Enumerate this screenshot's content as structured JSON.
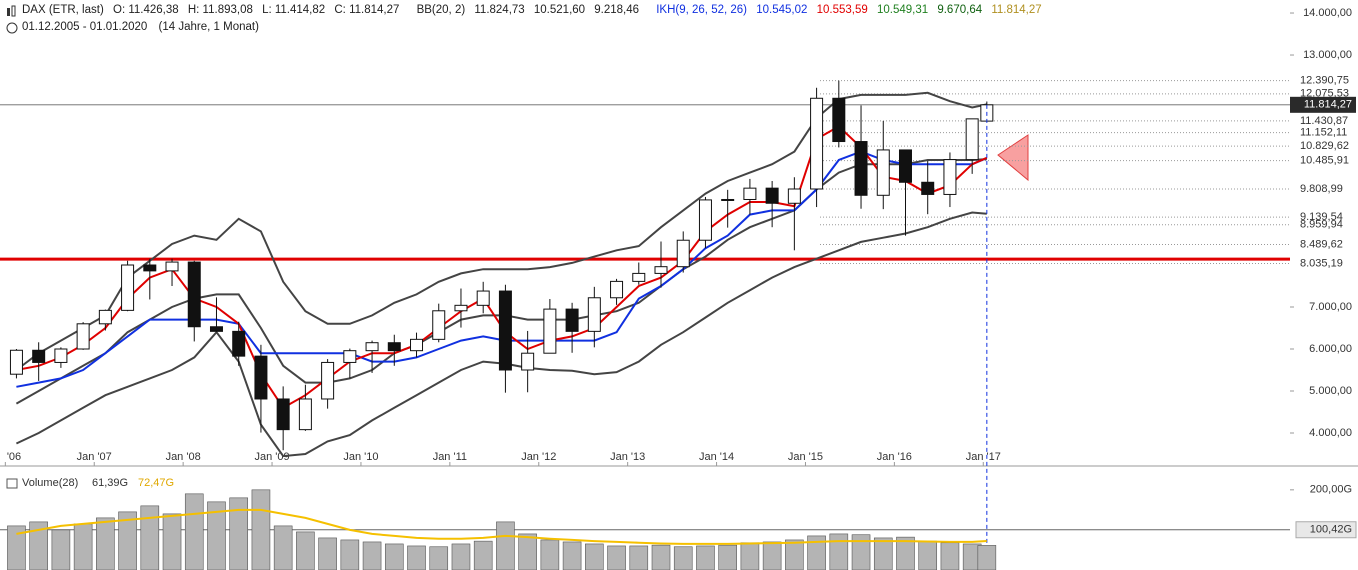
{
  "header": {
    "symbol": "DAX (ETR, last)",
    "open": "O: 11.426,38",
    "high": "H: 11.893,08",
    "low": "L: 11.414,82",
    "close": "C: 11.814,27",
    "bb": "BB(20, 2)",
    "bb_upper": "11.824,73",
    "bb_middle": "10.521,60",
    "bb_lower": "9.218,46",
    "ikh": "IKH(9, 26, 52, 26)",
    "ikh_1": "10.545,02",
    "ikh_2": "10.553,59",
    "ikh_3": "10.549,31",
    "ikh_4": "9.670,64",
    "ikh_5": "11.814,27",
    "range": "01.12.2005 - 01.01.2020",
    "span": "(14 Jahre, 1 Monat)"
  },
  "chart_data": [
    {
      "type": "candlestick",
      "x": [
        2006.125,
        2006.375,
        2006.625,
        2006.875,
        2007.125,
        2007.375,
        2007.625,
        2007.875,
        2008.125,
        2008.375,
        2008.625,
        2008.875,
        2009.125,
        2009.375,
        2009.625,
        2009.875,
        2010.125,
        2010.375,
        2010.625,
        2010.875,
        2011.125,
        2011.375,
        2011.625,
        2011.875,
        2012.125,
        2012.375,
        2012.625,
        2012.875,
        2013.125,
        2013.375,
        2013.625,
        2013.875,
        2014.125,
        2014.375,
        2014.625,
        2014.875,
        2015.125,
        2015.375,
        2015.625,
        2015.875,
        2016.125,
        2016.375,
        2016.625,
        2016.875,
        2017.04
      ],
      "open": [
        5400,
        5970,
        5680,
        6000,
        6600,
        6920,
        8000,
        7860,
        8070,
        6530,
        6420,
        5830,
        4810,
        4080,
        4810,
        5680,
        5960,
        6150,
        5960,
        6230,
        6910,
        7040,
        7380,
        5500,
        5900,
        6950,
        6420,
        7220,
        7610,
        7800,
        7960,
        8590,
        9550,
        9560,
        9830,
        9470,
        9810,
        11970,
        10940,
        9660,
        10740,
        9970,
        9680,
        10510,
        11426.38
      ],
      "high": [
        6000,
        6160,
        6040,
        6640,
        6940,
        8100,
        8150,
        8150,
        8100,
        7230,
        6650,
        6100,
        5110,
        5150,
        5760,
        6010,
        6200,
        6340,
        6390,
        7080,
        7440,
        7600,
        7530,
        6430,
        7190,
        7100,
        7480,
        7670,
        8060,
        8560,
        8800,
        9620,
        9790,
        10050,
        10000,
        10090,
        12220,
        12390,
        11800,
        11430,
        10740,
        10480,
        10680,
        11480,
        11893.08
      ],
      "low": [
        5300,
        5240,
        5550,
        5980,
        6440,
        6900,
        7180,
        7500,
        6180,
        6400,
        5600,
        4010,
        3590,
        4050,
        4580,
        5300,
        5430,
        5600,
        5800,
        6160,
        6510,
        6850,
        4960,
        4970,
        5900,
        5910,
        6040,
        7050,
        7530,
        7460,
        7820,
        8400,
        8890,
        9200,
        8900,
        8350,
        9380,
        10800,
        9340,
        9330,
        8700,
        9210,
        9380,
        10170,
        11414.82
      ],
      "close": [
        5970,
        5680,
        6000,
        6600,
        6920,
        8000,
        7860,
        8070,
        6530,
        6420,
        5830,
        4810,
        4080,
        4810,
        5680,
        5960,
        6150,
        5960,
        6230,
        6910,
        7040,
        7380,
        5500,
        5900,
        6950,
        6420,
        7220,
        7610,
        7800,
        7960,
        8590,
        9550,
        9560,
        9830,
        9470,
        9810,
        11970,
        10940,
        9660,
        10740,
        9970,
        9680,
        10510,
        11480,
        11814.27
      ],
      "series": [
        {
          "color": "#444444",
          "values": [
            5500,
            5900,
            6200,
            6500,
            6800,
            7700,
            8100,
            8500,
            8700,
            8600,
            9100,
            8800,
            7600,
            6900,
            6600,
            6600,
            6800,
            7100,
            7300,
            7600,
            7800,
            7900,
            7900,
            7900,
            7950,
            8050,
            8200,
            8350,
            8450,
            8900,
            9300,
            9700,
            10000,
            10200,
            10400,
            10700,
            11500,
            11950,
            12050,
            12050,
            12050,
            12100,
            11900,
            11750,
            11824.73
          ]
        },
        {
          "color": "#444444",
          "values": [
            4700,
            5000,
            5300,
            5600,
            5900,
            6400,
            6700,
            7000,
            7200,
            7300,
            7300,
            6500,
            5600,
            5200,
            5200,
            5300,
            5500,
            5900,
            6100,
            6400,
            6700,
            6800,
            6800,
            6700,
            6700,
            6700,
            6800,
            6900,
            7100,
            7500,
            7900,
            8200,
            8600,
            8900,
            9100,
            9300,
            9800,
            10200,
            10400,
            10400,
            10400,
            10500,
            10500,
            10500,
            10521.6
          ]
        },
        {
          "color": "#444444",
          "values": [
            3750,
            4000,
            4300,
            4600,
            4900,
            5100,
            5300,
            5500,
            5800,
            6400,
            5700,
            4200,
            3450,
            3500,
            3800,
            3950,
            4300,
            4600,
            4900,
            5200,
            5500,
            5700,
            5650,
            5550,
            5500,
            5480,
            5400,
            5450,
            5700,
            6100,
            6400,
            6750,
            7100,
            7400,
            7700,
            7950,
            8150,
            8350,
            8550,
            8650,
            8750,
            8900,
            9100,
            9250,
            9218.46
          ]
        },
        {
          "color": "#1030e0",
          "values": [
            5100,
            5200,
            5300,
            5500,
            5900,
            6300,
            6700,
            6700,
            6700,
            6700,
            6600,
            5900,
            5900,
            5900,
            5900,
            5900,
            5700,
            5700,
            5800,
            6000,
            6200,
            6300,
            6200,
            6200,
            6200,
            6200,
            6200,
            6400,
            7200,
            7500,
            7900,
            8400,
            8700,
            9200,
            9300,
            9300,
            9800,
            10500,
            10700,
            10500,
            10400,
            10400,
            10400,
            10400,
            10545.02
          ]
        },
        {
          "color": "#e00000",
          "values": [
            5500,
            5600,
            5800,
            6100,
            6500,
            7200,
            7700,
            7900,
            7200,
            7000,
            6600,
            5400,
            4600,
            4900,
            5300,
            5700,
            5900,
            5900,
            6100,
            6500,
            6900,
            7200,
            6400,
            6000,
            6200,
            6300,
            6500,
            7000,
            7500,
            7700,
            8100,
            8800,
            9200,
            9500,
            9500,
            9400,
            11000,
            11300,
            10800,
            10100,
            10000,
            9700,
            9900,
            10400,
            10553.59
          ]
        }
      ],
      "support": 8140,
      "xlim": [
        2005.94,
        2020.45
      ],
      "ylim": [
        3238,
        14310
      ],
      "xticks": [
        {
          "value": 2006,
          "label": "'06"
        },
        {
          "value": 2007,
          "label": "Jan '07"
        },
        {
          "value": 2008,
          "label": "Jan '08"
        },
        {
          "value": 2009,
          "label": "Jan '09"
        },
        {
          "value": 2010,
          "label": "Jan '10"
        },
        {
          "value": 2011,
          "label": "Jan '11"
        },
        {
          "value": 2012,
          "label": "Jan '12"
        },
        {
          "value": 2013,
          "label": "Jan '13"
        },
        {
          "value": 2014,
          "label": "Jan '14"
        },
        {
          "value": 2015,
          "label": "Jan '15"
        },
        {
          "value": 2016,
          "label": "Jan '16"
        },
        {
          "value": 2017,
          "label": "Jan '17"
        }
      ],
      "yticks": [
        {
          "value": 14000,
          "label": "14.000,00"
        },
        {
          "value": 13000,
          "label": "13.000,00"
        },
        {
          "value": 7000,
          "label": "7.000,00"
        },
        {
          "value": 6000,
          "label": "6.000,00"
        },
        {
          "value": 5000,
          "label": "5.000,00"
        },
        {
          "value": 4000,
          "label": "4.000,00"
        }
      ],
      "levels": [
        {
          "value": 12390.75,
          "label": "12.390,75"
        },
        {
          "value": 12075.53,
          "label": "12.075,53"
        },
        {
          "value": 11430.87,
          "label": "11.430,87"
        },
        {
          "value": 11152.11,
          "label": "11.152,11"
        },
        {
          "value": 10829.62,
          "label": "10.829,62"
        },
        {
          "value": 10485.91,
          "label": "10.485,91"
        },
        {
          "value": 9808.99,
          "label": "9.808,99"
        },
        {
          "value": 9139.54,
          "label": "9.139,54"
        },
        {
          "value": 8959.94,
          "label": "8.959,94"
        },
        {
          "value": 8489.62,
          "label": "8.489,62"
        },
        {
          "value": 8035.19,
          "label": "8.035,19"
        }
      ],
      "marker_level": {
        "value": 11814.27,
        "label": "11.814,27"
      }
    },
    {
      "type": "bar",
      "title": "Volume(28)",
      "x": [
        2006.125,
        2006.375,
        2006.625,
        2006.875,
        2007.125,
        2007.375,
        2007.625,
        2007.875,
        2008.125,
        2008.375,
        2008.625,
        2008.875,
        2009.125,
        2009.375,
        2009.625,
        2009.875,
        2010.125,
        2010.375,
        2010.625,
        2010.875,
        2011.125,
        2011.375,
        2011.625,
        2011.875,
        2012.125,
        2012.375,
        2012.625,
        2012.875,
        2013.125,
        2013.375,
        2013.625,
        2013.875,
        2014.125,
        2014.375,
        2014.625,
        2014.875,
        2015.125,
        2015.375,
        2015.625,
        2015.875,
        2016.125,
        2016.375,
        2016.625,
        2016.875,
        2017.04
      ],
      "values": [
        110,
        120,
        100,
        115,
        130,
        145,
        160,
        140,
        190,
        170,
        180,
        200,
        110,
        95,
        80,
        75,
        70,
        65,
        60,
        58,
        65,
        72,
        120,
        90,
        75,
        70,
        65,
        60,
        60,
        62,
        58,
        60,
        62,
        68,
        70,
        75,
        85,
        90,
        88,
        80,
        82,
        72,
        68,
        65,
        61.39
      ],
      "color": "#b4b4b4",
      "series": [
        {
          "color": "#f5c000",
          "values": [
            90,
            100,
            110,
            115,
            120,
            125,
            130,
            135,
            140,
            145,
            150,
            150,
            140,
            130,
            115,
            100,
            90,
            85,
            80,
            78,
            78,
            80,
            85,
            82,
            78,
            75,
            72,
            70,
            68,
            66,
            65,
            65,
            65,
            66,
            67,
            68,
            70,
            72,
            72,
            72,
            72,
            71,
            70,
            70,
            72.47
          ]
        }
      ],
      "last_label": "61,39G",
      "ma_label": "72,47G",
      "ylim": [
        0,
        242
      ],
      "yticks": [
        {
          "value": 200,
          "label": "200,00G"
        }
      ],
      "marker_level": {
        "value": 100.42,
        "label": "100,42G"
      }
    }
  ]
}
